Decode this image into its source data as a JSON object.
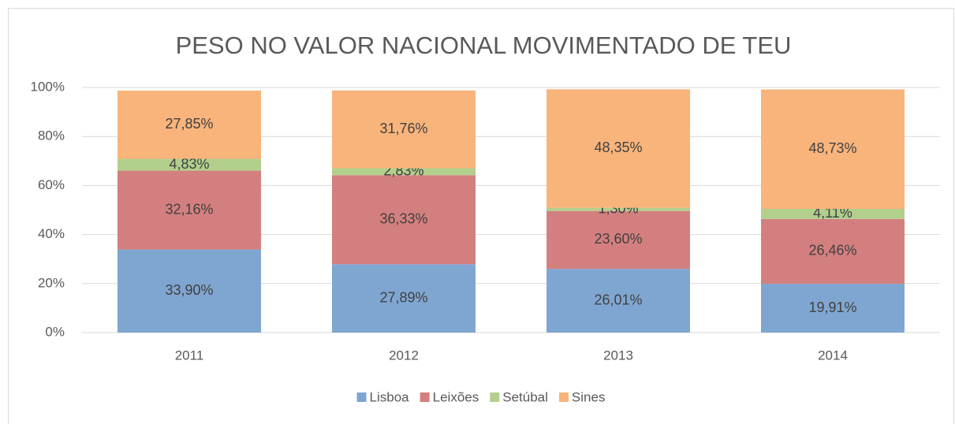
{
  "chart_data": {
    "type": "stacked_bar",
    "title": "PESO NO VALOR NACIONAL MOVIMENTADO DE TEU",
    "categories": [
      "2011",
      "2012",
      "2013",
      "2014"
    ],
    "series": [
      {
        "name": "Lisboa",
        "color": "#7fa6d1",
        "values": [
          33.9,
          27.89,
          26.01,
          19.91
        ],
        "value_labels": [
          "33,90%",
          "27,89%",
          "26,01%",
          "19,91%"
        ]
      },
      {
        "name": "Leixões",
        "color": "#d47f7f",
        "values": [
          32.16,
          36.33,
          23.6,
          26.46
        ],
        "value_labels": [
          "32,16%",
          "36,33%",
          "23,60%",
          "26,46%"
        ]
      },
      {
        "name": "Setúbal",
        "color": "#b2cf8c",
        "values": [
          4.83,
          2.83,
          1.3,
          4.11
        ],
        "value_labels": [
          "4,83%",
          "2,83%",
          "1,30%",
          "4,11%"
        ]
      },
      {
        "name": "Sines",
        "color": "#f9b47c",
        "values": [
          27.85,
          31.76,
          48.35,
          48.73
        ],
        "value_labels": [
          "27,85%",
          "31,76%",
          "48,35%",
          "48,73%"
        ]
      }
    ],
    "ylim": [
      0,
      100
    ],
    "yticks": [
      {
        "value": 0,
        "label": "0%"
      },
      {
        "value": 20,
        "label": "20%"
      },
      {
        "value": 40,
        "label": "40%"
      },
      {
        "value": 60,
        "label": "60%"
      },
      {
        "value": 80,
        "label": "80%"
      },
      {
        "value": 100,
        "label": "100%"
      }
    ],
    "grid": true,
    "legend": "bottom"
  }
}
